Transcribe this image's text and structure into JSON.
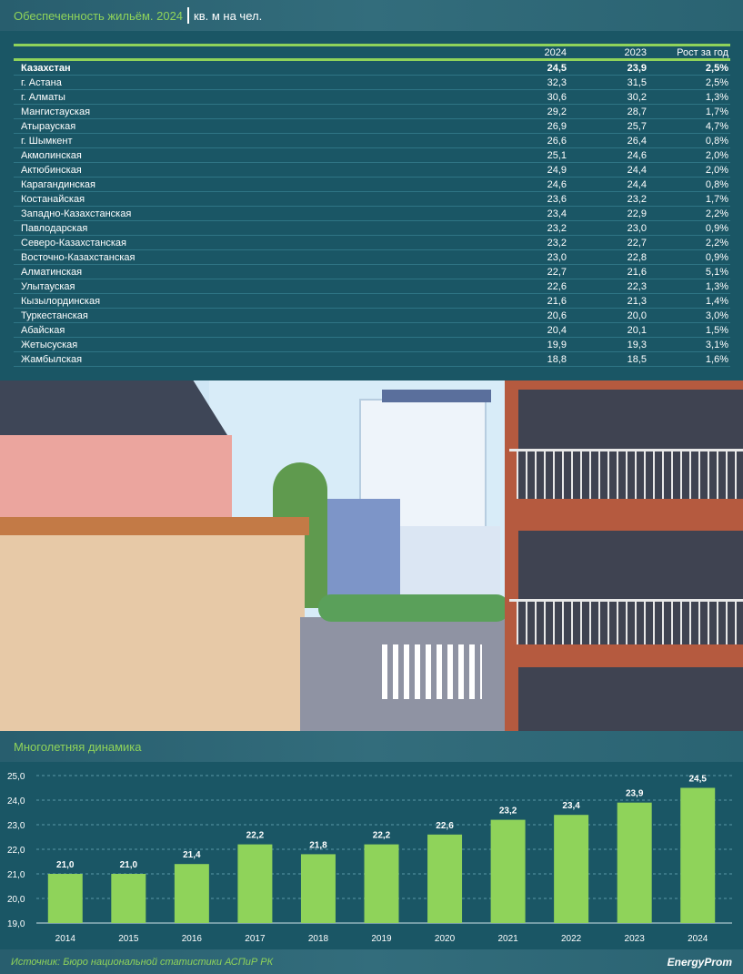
{
  "header": {
    "title": "Обеспеченность жильём. 2024",
    "unit": "кв. м на чел."
  },
  "table": {
    "columns": [
      "",
      "2024",
      "2023",
      "Рост за год"
    ],
    "rows": [
      [
        "Казахстан",
        "24,5",
        "23,9",
        "2,5%"
      ],
      [
        "г. Астана",
        "32,3",
        "31,5",
        "2,5%"
      ],
      [
        "г. Алматы",
        "30,6",
        "30,2",
        "1,3%"
      ],
      [
        "Мангистауская",
        "29,2",
        "28,7",
        "1,7%"
      ],
      [
        "Атырауская",
        "26,9",
        "25,7",
        "4,7%"
      ],
      [
        "г. Шымкент",
        "26,6",
        "26,4",
        "0,8%"
      ],
      [
        "Акмолинская",
        "25,1",
        "24,6",
        "2,0%"
      ],
      [
        "Актюбинская",
        "24,9",
        "24,4",
        "2,0%"
      ],
      [
        "Карагандинская",
        "24,6",
        "24,4",
        "0,8%"
      ],
      [
        "Костанайская",
        "23,6",
        "23,2",
        "1,7%"
      ],
      [
        "Западно-Казахстанская",
        "23,4",
        "22,9",
        "2,2%"
      ],
      [
        "Павлодарская",
        "23,2",
        "23,0",
        "0,9%"
      ],
      [
        "Северо-Казахстанская",
        "23,2",
        "22,7",
        "2,2%"
      ],
      [
        "Восточно-Казахстанская",
        "23,0",
        "22,8",
        "0,9%"
      ],
      [
        "Алматинская",
        "22,7",
        "21,6",
        "5,1%"
      ],
      [
        "Улытауская",
        "22,6",
        "22,3",
        "1,3%"
      ],
      [
        "Кызылординская",
        "21,6",
        "21,3",
        "1,4%"
      ],
      [
        "Туркестанская",
        "20,6",
        "20,0",
        "3,0%"
      ],
      [
        "Абайская",
        "20,4",
        "20,1",
        "1,5%"
      ],
      [
        "Жетысуская",
        "19,9",
        "19,3",
        "3,1%"
      ],
      [
        "Жамбылская",
        "18,8",
        "18,5",
        "1,6%"
      ]
    ]
  },
  "chart_section": {
    "title": "Многолетняя динамика"
  },
  "chart_data": {
    "type": "bar",
    "title": "Многолетняя динамика",
    "categories": [
      "2014",
      "2015",
      "2016",
      "2017",
      "2018",
      "2019",
      "2020",
      "2021",
      "2022",
      "2023",
      "2024"
    ],
    "values": [
      21.0,
      21.0,
      21.4,
      22.2,
      21.8,
      22.2,
      22.6,
      23.2,
      23.4,
      23.9,
      24.5
    ],
    "value_labels": [
      "21,0",
      "21,0",
      "21,4",
      "22,2",
      "21,8",
      "22,2",
      "22,6",
      "23,2",
      "23,4",
      "23,9",
      "24,5"
    ],
    "yticks": [
      "19,0",
      "20,0",
      "21,0",
      "22,0",
      "23,0",
      "24,0",
      "25,0"
    ],
    "ylim": [
      19,
      25
    ],
    "grid": true,
    "bar_color": "#8fd35a"
  },
  "footer": {
    "source": "Источник: Бюро национальной статистики АСПиР РК",
    "logo": "EnergyProm"
  }
}
